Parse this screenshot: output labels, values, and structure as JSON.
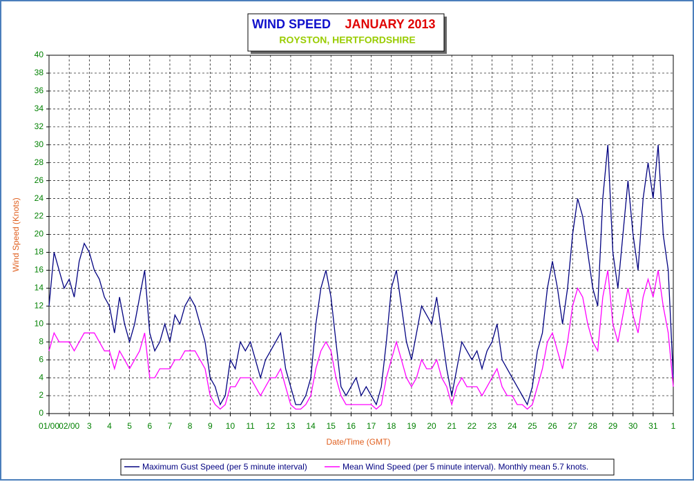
{
  "chart_data": {
    "type": "line",
    "title": "WIND SPEED",
    "title_month": "JANUARY 2013",
    "subtitle": "ROYSTON, HERTFORDSHIRE",
    "x_label": "Date/Time (GMT)",
    "y_label": "Wind Speed (Knots)",
    "xlim": [
      0,
      31
    ],
    "ylim": [
      0,
      40
    ],
    "grid": true,
    "legend": "bottom",
    "xticks": [
      {
        "value": 0,
        "label": "01/00"
      },
      {
        "value": 1,
        "label": "02/00"
      },
      {
        "value": 2,
        "label": "3"
      },
      {
        "value": 3,
        "label": "4"
      },
      {
        "value": 4,
        "label": "5"
      },
      {
        "value": 5,
        "label": "6"
      },
      {
        "value": 6,
        "label": "7"
      },
      {
        "value": 7,
        "label": "8"
      },
      {
        "value": 8,
        "label": "9"
      },
      {
        "value": 9,
        "label": "10"
      },
      {
        "value": 10,
        "label": "11"
      },
      {
        "value": 11,
        "label": "12"
      },
      {
        "value": 12,
        "label": "13"
      },
      {
        "value": 13,
        "label": "14"
      },
      {
        "value": 14,
        "label": "15"
      },
      {
        "value": 15,
        "label": "16"
      },
      {
        "value": 16,
        "label": "17"
      },
      {
        "value": 17,
        "label": "18"
      },
      {
        "value": 18,
        "label": "19"
      },
      {
        "value": 19,
        "label": "20"
      },
      {
        "value": 20,
        "label": "21"
      },
      {
        "value": 21,
        "label": "22"
      },
      {
        "value": 22,
        "label": "23"
      },
      {
        "value": 23,
        "label": "24"
      },
      {
        "value": 24,
        "label": "25"
      },
      {
        "value": 25,
        "label": "26"
      },
      {
        "value": 26,
        "label": "27"
      },
      {
        "value": 27,
        "label": "28"
      },
      {
        "value": 28,
        "label": "29"
      },
      {
        "value": 29,
        "label": "30"
      },
      {
        "value": 30,
        "label": "31"
      },
      {
        "value": 31,
        "label": "1"
      }
    ],
    "yticks": [
      0,
      2,
      4,
      6,
      8,
      10,
      12,
      14,
      16,
      18,
      20,
      22,
      24,
      26,
      28,
      30,
      32,
      34,
      36,
      38,
      40
    ],
    "x": [
      0,
      0.25,
      0.5,
      0.75,
      1,
      1.25,
      1.5,
      1.75,
      2,
      2.25,
      2.5,
      2.75,
      3,
      3.25,
      3.5,
      3.75,
      4,
      4.25,
      4.5,
      4.75,
      5,
      5.25,
      5.5,
      5.75,
      6,
      6.25,
      6.5,
      6.75,
      7,
      7.25,
      7.5,
      7.75,
      8,
      8.25,
      8.5,
      8.75,
      9,
      9.25,
      9.5,
      9.75,
      10,
      10.25,
      10.5,
      10.75,
      11,
      11.25,
      11.5,
      11.75,
      12,
      12.25,
      12.5,
      12.75,
      13,
      13.25,
      13.5,
      13.75,
      14,
      14.25,
      14.5,
      14.75,
      15,
      15.25,
      15.5,
      15.75,
      16,
      16.25,
      16.5,
      16.75,
      17,
      17.25,
      17.5,
      17.75,
      18,
      18.25,
      18.5,
      18.75,
      19,
      19.25,
      19.5,
      19.75,
      20,
      20.25,
      20.5,
      20.75,
      21,
      21.25,
      21.5,
      21.75,
      22,
      22.25,
      22.5,
      22.75,
      23,
      23.25,
      23.5,
      23.75,
      24,
      24.25,
      24.5,
      24.75,
      25,
      25.25,
      25.5,
      25.75,
      26,
      26.25,
      26.5,
      26.75,
      27,
      27.25,
      27.5,
      27.75,
      28,
      28.25,
      28.5,
      28.75,
      29,
      29.25,
      29.5,
      29.75,
      30,
      30.25,
      30.5,
      30.75,
      31
    ],
    "series": [
      {
        "name": "Maximum Gust Speed (per 5 minute interval)",
        "color": "#000080",
        "values": [
          12,
          18,
          16,
          14,
          15,
          13,
          17,
          19,
          18,
          16,
          15,
          13,
          12,
          9,
          13,
          10,
          8,
          10,
          13,
          16,
          9,
          7,
          8,
          10,
          8,
          11,
          10,
          12,
          13,
          12,
          10,
          8,
          4,
          3,
          1,
          2,
          6,
          5,
          8,
          7,
          8,
          6,
          4,
          6,
          7,
          8,
          9,
          5,
          3,
          1,
          1,
          2,
          4,
          10,
          14,
          16,
          13,
          8,
          3,
          2,
          3,
          4,
          2,
          3,
          2,
          1,
          3,
          8,
          14,
          16,
          12,
          8,
          6,
          9,
          12,
          11,
          10,
          13,
          9,
          5,
          2,
          5,
          8,
          7,
          6,
          7,
          5,
          7,
          8,
          10,
          6,
          5,
          4,
          3,
          2,
          1,
          3,
          7,
          9,
          14,
          17,
          14,
          10,
          14,
          20,
          24,
          22,
          18,
          14,
          12,
          24,
          30,
          18,
          14,
          20,
          26,
          20,
          16,
          24,
          28,
          24,
          30,
          20,
          16,
          4
        ]
      },
      {
        "name": "Mean Wind Speed (per 5 minute interval). Monthly mean 5.7 knots.",
        "color": "#ff00ff",
        "values": [
          7,
          9,
          8,
          8,
          8,
          7,
          8,
          9,
          9,
          9,
          8,
          7,
          7,
          5,
          7,
          6,
          5,
          6,
          7,
          9,
          4,
          4,
          5,
          5,
          5,
          6,
          6,
          7,
          7,
          7,
          6,
          5,
          2,
          1,
          0.5,
          1,
          3,
          3,
          4,
          4,
          4,
          3,
          2,
          3,
          4,
          4,
          5,
          3,
          1,
          0.5,
          0.5,
          1,
          2,
          5,
          7,
          8,
          7,
          4,
          2,
          1,
          1,
          1,
          1,
          1,
          1,
          0.5,
          1,
          4,
          6,
          8,
          6,
          4,
          3,
          4,
          6,
          5,
          5,
          6,
          4,
          3,
          1,
          3,
          4,
          3,
          3,
          3,
          2,
          3,
          4,
          5,
          3,
          2,
          2,
          1,
          1,
          0.5,
          1,
          3,
          5,
          8,
          9,
          7,
          5,
          8,
          12,
          14,
          13,
          10,
          8,
          7,
          13,
          16,
          10,
          8,
          11,
          14,
          11,
          9,
          13,
          15,
          13,
          16,
          12,
          9,
          3
        ]
      }
    ]
  }
}
